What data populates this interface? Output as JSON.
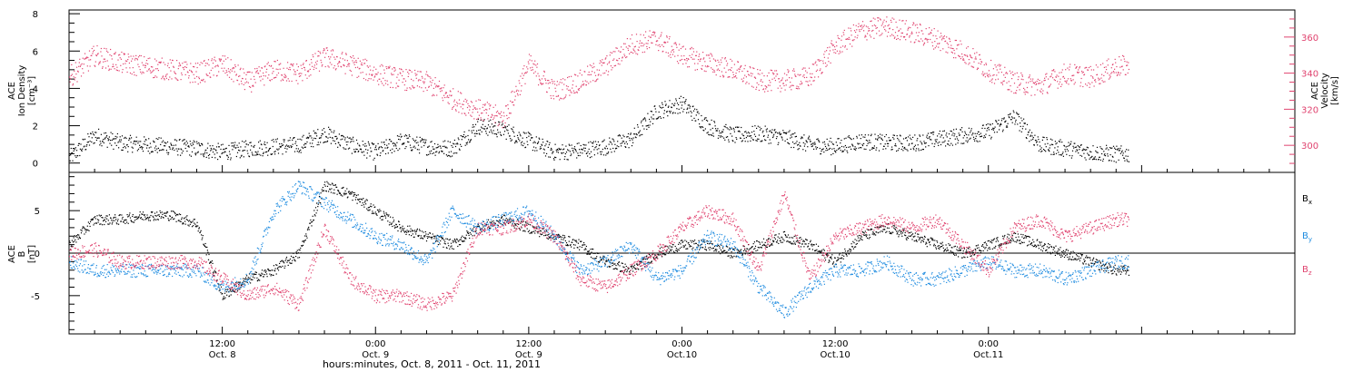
{
  "chart_data": [
    {
      "type": "scatter",
      "panel": "top",
      "ylabel_left": [
        "ACE",
        "Ion Density",
        "[cm⁻³]"
      ],
      "ylabel_right": [
        "ACE",
        "Velocity",
        "[km/s]"
      ],
      "y_left_ticks": [
        0,
        2,
        4,
        6,
        8
      ],
      "y_left_range": [
        -0.5,
        8.2
      ],
      "y_right_ticks": [
        300,
        320,
        340,
        360
      ],
      "y_right_range": [
        285,
        375
      ],
      "right_axis_color": "#e0436f",
      "series": [
        {
          "color": "#000000",
          "axis": "left",
          "x": [
            0,
            2,
            4,
            6,
            8,
            10,
            12,
            14,
            16,
            18,
            20,
            22,
            24,
            26,
            28,
            30,
            32,
            34,
            36,
            38,
            40,
            42,
            44,
            46,
            48,
            50,
            52,
            54,
            56,
            58,
            60,
            62,
            64,
            66,
            68,
            70,
            72,
            74,
            76,
            78,
            80,
            82
          ],
          "values": [
            0.3,
            1.5,
            1.1,
            1.0,
            0.9,
            0.8,
            0.6,
            0.8,
            0.9,
            1.0,
            1.6,
            1.0,
            0.6,
            1.2,
            0.9,
            0.8,
            2.0,
            1.8,
            1.2,
            0.6,
            0.7,
            0.9,
            1.3,
            2.8,
            3.2,
            2.0,
            1.5,
            1.6,
            1.4,
            1.0,
            0.9,
            1.2,
            1.1,
            1.1,
            1.3,
            1.5,
            1.7,
            2.5,
            1.0,
            0.8,
            0.6,
            0.5
          ]
        },
        {
          "color": "#e0436f",
          "axis": "right",
          "x": [
            0,
            2,
            4,
            6,
            8,
            10,
            12,
            14,
            16,
            18,
            20,
            22,
            24,
            26,
            28,
            30,
            32,
            34,
            36,
            38,
            40,
            42,
            44,
            46,
            48,
            50,
            52,
            54,
            56,
            58,
            60,
            62,
            64,
            66,
            68,
            70,
            72,
            74,
            76,
            78,
            80,
            82
          ],
          "values": [
            338,
            350,
            346,
            344,
            342,
            340,
            345,
            335,
            342,
            340,
            349,
            345,
            340,
            337,
            335,
            326,
            320,
            315,
            345,
            330,
            336,
            344,
            356,
            359,
            350,
            346,
            342,
            336,
            336,
            338,
            355,
            364,
            366,
            363,
            359,
            352,
            342,
            335,
            333,
            340,
            338,
            344
          ]
        }
      ]
    },
    {
      "type": "scatter",
      "panel": "bottom",
      "ylabel_left": [
        "ACE",
        "B",
        "[nT]"
      ],
      "y_left_ticks": [
        -5,
        0,
        5
      ],
      "y_left_range": [
        -9.5,
        9.5
      ],
      "legend": [
        {
          "label": "B",
          "sub": "x",
          "color": "#000000"
        },
        {
          "label": "B",
          "sub": "y",
          "color": "#1f8ce0"
        },
        {
          "label": "B",
          "sub": "z",
          "color": "#e0436f"
        }
      ],
      "series": [
        {
          "color": "#000000",
          "x": [
            0,
            2,
            4,
            6,
            8,
            10,
            12,
            14,
            16,
            18,
            20,
            22,
            24,
            26,
            28,
            30,
            32,
            34,
            36,
            38,
            40,
            42,
            44,
            46,
            48,
            50,
            52,
            54,
            56,
            58,
            60,
            62,
            64,
            66,
            68,
            70,
            72,
            74,
            76,
            78,
            80,
            82
          ],
          "values": [
            1,
            4,
            4,
            4.5,
            4.5,
            3.5,
            -5,
            -3,
            -2,
            0,
            8,
            7,
            5,
            3,
            2,
            1,
            3,
            4,
            3,
            2,
            1,
            -1,
            -2,
            0,
            1,
            1,
            0,
            1,
            2,
            1,
            -1,
            2,
            3,
            2,
            1,
            0,
            1,
            2,
            1,
            0,
            -1,
            -2
          ]
        },
        {
          "color": "#1f8ce0",
          "x": [
            0,
            2,
            4,
            6,
            8,
            10,
            12,
            14,
            16,
            18,
            20,
            22,
            24,
            26,
            28,
            30,
            32,
            34,
            36,
            38,
            40,
            42,
            44,
            46,
            48,
            50,
            52,
            54,
            56,
            58,
            60,
            62,
            64,
            66,
            68,
            70,
            72,
            74,
            76,
            78,
            80,
            82
          ],
          "values": [
            -1,
            -2,
            -2,
            -2,
            -2,
            -2,
            -4,
            -3,
            5,
            8,
            6,
            4,
            2,
            1,
            -1,
            5,
            3,
            4,
            5,
            2,
            -2,
            -1,
            1,
            -3,
            -2,
            2,
            1,
            -4,
            -7,
            -4,
            -2,
            -2,
            -1,
            -3,
            -3,
            -2,
            -1,
            -2,
            -2,
            -3,
            -2,
            -1
          ]
        },
        {
          "color": "#e0436f",
          "x": [
            0,
            2,
            4,
            6,
            8,
            10,
            12,
            14,
            16,
            18,
            20,
            22,
            24,
            26,
            28,
            30,
            32,
            34,
            36,
            38,
            40,
            42,
            44,
            46,
            48,
            50,
            52,
            54,
            56,
            58,
            60,
            62,
            64,
            66,
            68,
            70,
            72,
            74,
            76,
            78,
            80,
            82
          ],
          "values": [
            0,
            0.5,
            -1,
            -1,
            -1,
            -1,
            -3,
            -5,
            -4,
            -6,
            3,
            -3,
            -5,
            -5,
            -6,
            -5,
            3,
            3,
            4,
            2,
            -3,
            -4,
            -2,
            0,
            3,
            5,
            4,
            -2,
            7,
            -3,
            2,
            3,
            4,
            3,
            4,
            1,
            -2,
            3,
            4,
            2,
            3,
            4
          ]
        }
      ]
    }
  ],
  "x_axis": {
    "tick_labels": [
      {
        "x": 12,
        "time": "12:00",
        "day": "Oct. 8"
      },
      {
        "x": 24,
        "time": "0:00",
        "day": "Oct. 9"
      },
      {
        "x": 36,
        "time": "12:00",
        "day": "Oct. 9"
      },
      {
        "x": 48,
        "time": "0:00",
        "day": "Oct.10"
      },
      {
        "x": 60,
        "time": "12:00",
        "day": "Oct.10"
      },
      {
        "x": 72,
        "time": "0:00",
        "day": "Oct.11"
      }
    ],
    "range": [
      0,
      96
    ],
    "xlabel": "hours:minutes, Oct.  8, 2011 - Oct. 11, 2011"
  }
}
